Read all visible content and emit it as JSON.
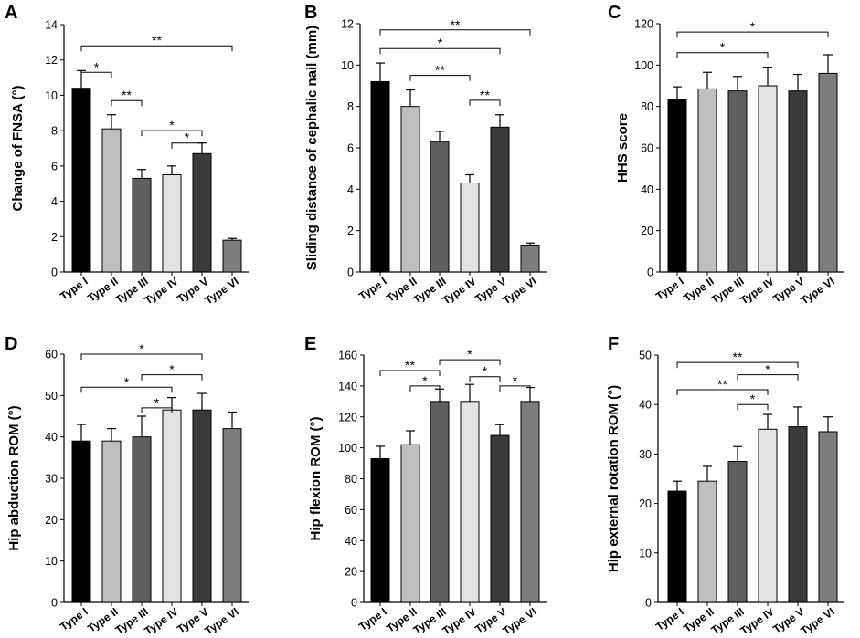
{
  "chart_data": [
    {
      "type": "bar",
      "letter": "A",
      "ylabel": "Change of FNSA (°)",
      "ylim": [
        0,
        14
      ],
      "ticks": [
        0,
        2,
        4,
        6,
        8,
        10,
        12,
        14
      ],
      "categories": [
        "Type I",
        "Type II",
        "Type III",
        "Type IV",
        "Type V",
        "Type VI"
      ],
      "values": [
        10.4,
        8.1,
        5.3,
        5.5,
        6.7,
        1.8
      ],
      "errors": [
        1.0,
        0.8,
        0.5,
        0.5,
        0.6,
        0.1
      ],
      "colors": [
        "#000000",
        "#bfbfbf",
        "#5f5f5f",
        "#e3e3e3",
        "#3a3a3a",
        "#7d7d7d"
      ],
      "significance": [
        {
          "from": 0,
          "to": 5,
          "label": "**",
          "y": 12.8
        },
        {
          "from": 0,
          "to": 1,
          "label": "*",
          "y": 11.3
        },
        {
          "from": 1,
          "to": 2,
          "label": "**",
          "y": 9.7
        },
        {
          "from": 2,
          "to": 4,
          "label": "*",
          "y": 8.0
        },
        {
          "from": 3,
          "to": 4,
          "label": "*",
          "y": 7.3
        }
      ]
    },
    {
      "type": "bar",
      "letter": "B",
      "ylabel": "Sliding distance of cephalic nail (mm)",
      "ylim": [
        0,
        12
      ],
      "ticks": [
        0,
        2,
        4,
        6,
        8,
        10,
        12
      ],
      "categories": [
        "Type I",
        "Type II",
        "Type III",
        "Type IV",
        "Type V",
        "Type VI"
      ],
      "values": [
        9.2,
        8.0,
        6.3,
        4.3,
        7.0,
        1.3
      ],
      "errors": [
        0.9,
        0.8,
        0.5,
        0.4,
        0.6,
        0.1
      ],
      "colors": [
        "#000000",
        "#bfbfbf",
        "#5f5f5f",
        "#e3e3e3",
        "#3a3a3a",
        "#7d7d7d"
      ],
      "significance": [
        {
          "from": 0,
          "to": 5,
          "label": "**",
          "y": 11.7
        },
        {
          "from": 0,
          "to": 4,
          "label": "*",
          "y": 10.8
        },
        {
          "from": 1,
          "to": 3,
          "label": "**",
          "y": 9.5
        },
        {
          "from": 3,
          "to": 4,
          "label": "**",
          "y": 8.3
        }
      ]
    },
    {
      "type": "bar",
      "letter": "C",
      "ylabel": "HHS score",
      "ylim": [
        0,
        120
      ],
      "ticks": [
        0,
        20,
        40,
        60,
        80,
        100,
        120
      ],
      "categories": [
        "Type I",
        "Type II",
        "Type III",
        "Type IV",
        "Type V",
        "Type VI"
      ],
      "values": [
        83.5,
        88.5,
        87.5,
        90,
        87.5,
        96
      ],
      "errors": [
        6,
        8,
        7,
        9,
        8,
        9
      ],
      "colors": [
        "#000000",
        "#bfbfbf",
        "#5f5f5f",
        "#e3e3e3",
        "#3a3a3a",
        "#7d7d7d"
      ],
      "significance": [
        {
          "from": 0,
          "to": 5,
          "label": "*",
          "y": 116
        },
        {
          "from": 0,
          "to": 3,
          "label": "*",
          "y": 106
        }
      ]
    },
    {
      "type": "bar",
      "letter": "D",
      "ylabel": "Hip abduction ROM (°)",
      "ylim": [
        0,
        60
      ],
      "ticks": [
        0,
        10,
        20,
        30,
        40,
        50,
        60
      ],
      "categories": [
        "Type I",
        "Type II",
        "Type III",
        "Type IV",
        "Type V",
        "Type VI"
      ],
      "values": [
        39,
        39,
        40,
        46.5,
        46.5,
        42
      ],
      "errors": [
        4,
        3,
        5,
        3,
        4,
        4
      ],
      "colors": [
        "#000000",
        "#bfbfbf",
        "#5f5f5f",
        "#e3e3e3",
        "#3a3a3a",
        "#7d7d7d"
      ],
      "significance": [
        {
          "from": 0,
          "to": 4,
          "label": "*",
          "y": 60
        },
        {
          "from": 2,
          "to": 4,
          "label": "*",
          "y": 55
        },
        {
          "from": 0,
          "to": 3,
          "label": "*",
          "y": 52
        },
        {
          "from": 2,
          "to": 3,
          "label": "*",
          "y": 47
        }
      ]
    },
    {
      "type": "bar",
      "letter": "E",
      "ylabel": "Hip flexion ROM (°)",
      "ylim": [
        0,
        160
      ],
      "ticks": [
        0,
        20,
        40,
        60,
        80,
        100,
        120,
        140,
        160
      ],
      "categories": [
        "Type I",
        "Type II",
        "Type III",
        "Type IV",
        "Type V",
        "Type VI"
      ],
      "values": [
        93,
        102,
        130,
        130,
        108,
        130
      ],
      "errors": [
        8,
        9,
        8,
        11,
        7,
        9
      ],
      "colors": [
        "#000000",
        "#bfbfbf",
        "#5f5f5f",
        "#e3e3e3",
        "#3a3a3a",
        "#7d7d7d"
      ],
      "significance": [
        {
          "from": 0,
          "to": 2,
          "label": "**",
          "y": 150
        },
        {
          "from": 2,
          "to": 4,
          "label": "*",
          "y": 157
        },
        {
          "from": 1,
          "to": 2,
          "label": "*",
          "y": 140
        },
        {
          "from": 3,
          "to": 4,
          "label": "*",
          "y": 146
        },
        {
          "from": 4,
          "to": 5,
          "label": "*",
          "y": 140
        }
      ]
    },
    {
      "type": "bar",
      "letter": "F",
      "ylabel": "Hip external rotation ROM (°)",
      "ylim": [
        0,
        50
      ],
      "ticks": [
        0,
        10,
        20,
        30,
        40,
        50
      ],
      "categories": [
        "Type I",
        "Type II",
        "Type III",
        "Type IV",
        "Type V",
        "Type VI"
      ],
      "values": [
        22.5,
        24.5,
        28.5,
        35,
        35.5,
        34.5
      ],
      "errors": [
        2,
        3,
        3,
        3,
        4,
        3
      ],
      "colors": [
        "#000000",
        "#bfbfbf",
        "#5f5f5f",
        "#e3e3e3",
        "#3a3a3a",
        "#7d7d7d"
      ],
      "significance": [
        {
          "from": 0,
          "to": 4,
          "label": "**",
          "y": 48.5
        },
        {
          "from": 2,
          "to": 4,
          "label": "*",
          "y": 46
        },
        {
          "from": 0,
          "to": 3,
          "label": "**",
          "y": 43
        },
        {
          "from": 2,
          "to": 3,
          "label": "*",
          "y": 40
        }
      ]
    }
  ]
}
